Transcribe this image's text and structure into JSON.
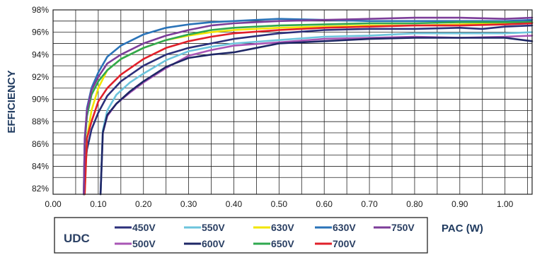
{
  "chart_data": {
    "type": "line",
    "xlabel": "PAC (W)",
    "ylabel": "EFFICIENCY",
    "xlim": [
      0.0,
      1.06
    ],
    "ylim": [
      81.5,
      98.0
    ],
    "x_ticks": [
      "0.00",
      "0.10",
      "0.20",
      "0.30",
      "0.40",
      "0.50",
      "0.60",
      "0.70",
      "0.80",
      "0.90",
      "1.00"
    ],
    "x_tick_values": [
      0.0,
      0.1,
      0.2,
      0.3,
      0.4,
      0.5,
      0.6,
      0.7,
      0.8,
      0.9,
      1.0
    ],
    "y_ticks": [
      "82%",
      "84%",
      "86%",
      "88%",
      "90%",
      "92%",
      "94%",
      "96%",
      "98%"
    ],
    "y_tick_values": [
      82,
      84,
      86,
      88,
      90,
      92,
      94,
      96,
      98
    ],
    "grid": true,
    "legend_title": "UDC",
    "legend_position": "bottom",
    "series": [
      {
        "name": "450V",
        "color": "#2b2f7a",
        "x": [
          0.069,
          0.07,
          0.075,
          0.085,
          0.1,
          0.12,
          0.15,
          0.2,
          0.25,
          0.3,
          0.35,
          0.4,
          0.5,
          0.6,
          0.7,
          0.8,
          0.9,
          0.95,
          1.0,
          1.06
        ],
        "y": [
          81.5,
          83.5,
          85.5,
          87.3,
          88.8,
          90.3,
          91.6,
          93.0,
          94.0,
          94.6,
          95.0,
          95.4,
          95.9,
          96.2,
          96.3,
          96.3,
          96.4,
          96.3,
          96.5,
          96.6
        ]
      },
      {
        "name": "500V",
        "color": "#a855b5",
        "x": [
          0.105,
          0.11,
          0.12,
          0.14,
          0.17,
          0.2,
          0.25,
          0.3,
          0.35,
          0.4,
          0.5,
          0.6,
          0.7,
          0.8,
          0.9,
          1.0,
          1.06
        ],
        "y": [
          81.5,
          87.0,
          88.5,
          89.6,
          90.6,
          91.5,
          92.8,
          93.9,
          94.4,
          94.8,
          95.1,
          95.4,
          95.5,
          95.6,
          95.5,
          95.6,
          95.7
        ]
      },
      {
        "name": "550V",
        "color": "#6cc4dc",
        "x": [
          0.105,
          0.11,
          0.12,
          0.14,
          0.17,
          0.2,
          0.25,
          0.3,
          0.35,
          0.4,
          0.5,
          0.6,
          0.7,
          0.8,
          0.9,
          1.0,
          1.06
        ],
        "y": [
          81.5,
          87.2,
          89.0,
          90.4,
          91.5,
          92.3,
          93.5,
          94.3,
          94.7,
          95.0,
          95.3,
          95.6,
          95.7,
          95.9,
          95.9,
          95.9,
          96.0
        ]
      },
      {
        "name": "600V",
        "color": "#1e2766",
        "x": [
          0.105,
          0.11,
          0.12,
          0.14,
          0.17,
          0.2,
          0.25,
          0.3,
          0.35,
          0.4,
          0.45,
          0.5,
          0.6,
          0.7,
          0.8,
          0.9,
          1.0,
          1.06
        ],
        "y": [
          81.5,
          87.0,
          88.6,
          89.6,
          90.7,
          91.6,
          92.9,
          93.7,
          94.0,
          94.2,
          94.6,
          95.0,
          95.2,
          95.4,
          95.5,
          95.5,
          95.5,
          95.2
        ]
      },
      {
        "name": "630V",
        "color": "#f2e500",
        "x": [
          0.07,
          0.075,
          0.085,
          0.1,
          0.12,
          0.15,
          0.2,
          0.25,
          0.3,
          0.35,
          0.4,
          0.5,
          0.6,
          0.7,
          0.8,
          0.9,
          1.0,
          1.06
        ],
        "y": [
          81.5,
          86.5,
          89.0,
          91.0,
          92.6,
          93.6,
          94.6,
          95.3,
          95.7,
          96.0,
          96.2,
          96.4,
          96.5,
          96.6,
          96.6,
          96.7,
          96.8,
          96.9
        ]
      },
      {
        "name": "630V",
        "color": "#2a73b8",
        "x": [
          0.068,
          0.07,
          0.075,
          0.085,
          0.1,
          0.12,
          0.15,
          0.2,
          0.25,
          0.3,
          0.35,
          0.4,
          0.45,
          0.5,
          0.6,
          0.7,
          0.8,
          0.9,
          1.0,
          1.06
        ],
        "y": [
          81.5,
          86.0,
          89.2,
          91.0,
          92.4,
          93.8,
          94.8,
          95.8,
          96.4,
          96.7,
          96.9,
          97.0,
          97.1,
          97.2,
          97.1,
          97.0,
          97.0,
          97.0,
          97.0,
          97.1
        ]
      },
      {
        "name": "650V",
        "color": "#2fa84f",
        "x": [
          0.068,
          0.07,
          0.075,
          0.085,
          0.1,
          0.12,
          0.15,
          0.2,
          0.25,
          0.3,
          0.35,
          0.4,
          0.5,
          0.6,
          0.7,
          0.8,
          0.9,
          1.0,
          1.06
        ],
        "y": [
          81.5,
          86.0,
          88.5,
          90.4,
          91.6,
          92.6,
          93.6,
          94.6,
          95.3,
          95.8,
          96.2,
          96.4,
          96.6,
          96.7,
          96.8,
          96.8,
          96.9,
          96.9,
          96.9
        ]
      },
      {
        "name": "700V",
        "color": "#e0202a",
        "x": [
          0.07,
          0.075,
          0.085,
          0.1,
          0.12,
          0.15,
          0.2,
          0.25,
          0.3,
          0.35,
          0.4,
          0.5,
          0.6,
          0.7,
          0.8,
          0.9,
          1.0,
          1.06
        ],
        "y": [
          81.5,
          86.5,
          88.0,
          89.8,
          91.0,
          92.2,
          93.6,
          94.6,
          95.2,
          95.6,
          95.9,
          96.2,
          96.4,
          96.5,
          96.6,
          96.6,
          96.7,
          96.8
        ]
      },
      {
        "name": "750V",
        "color": "#7c3d99",
        "x": [
          0.068,
          0.07,
          0.075,
          0.085,
          0.1,
          0.12,
          0.15,
          0.2,
          0.25,
          0.3,
          0.35,
          0.4,
          0.5,
          0.6,
          0.7,
          0.8,
          0.9,
          1.0,
          1.06
        ],
        "y": [
          81.5,
          86.5,
          89.0,
          90.8,
          92.0,
          93.2,
          94.0,
          95.0,
          95.7,
          96.2,
          96.6,
          96.8,
          97.0,
          97.1,
          97.2,
          97.3,
          97.3,
          97.2,
          97.3
        ]
      }
    ]
  }
}
